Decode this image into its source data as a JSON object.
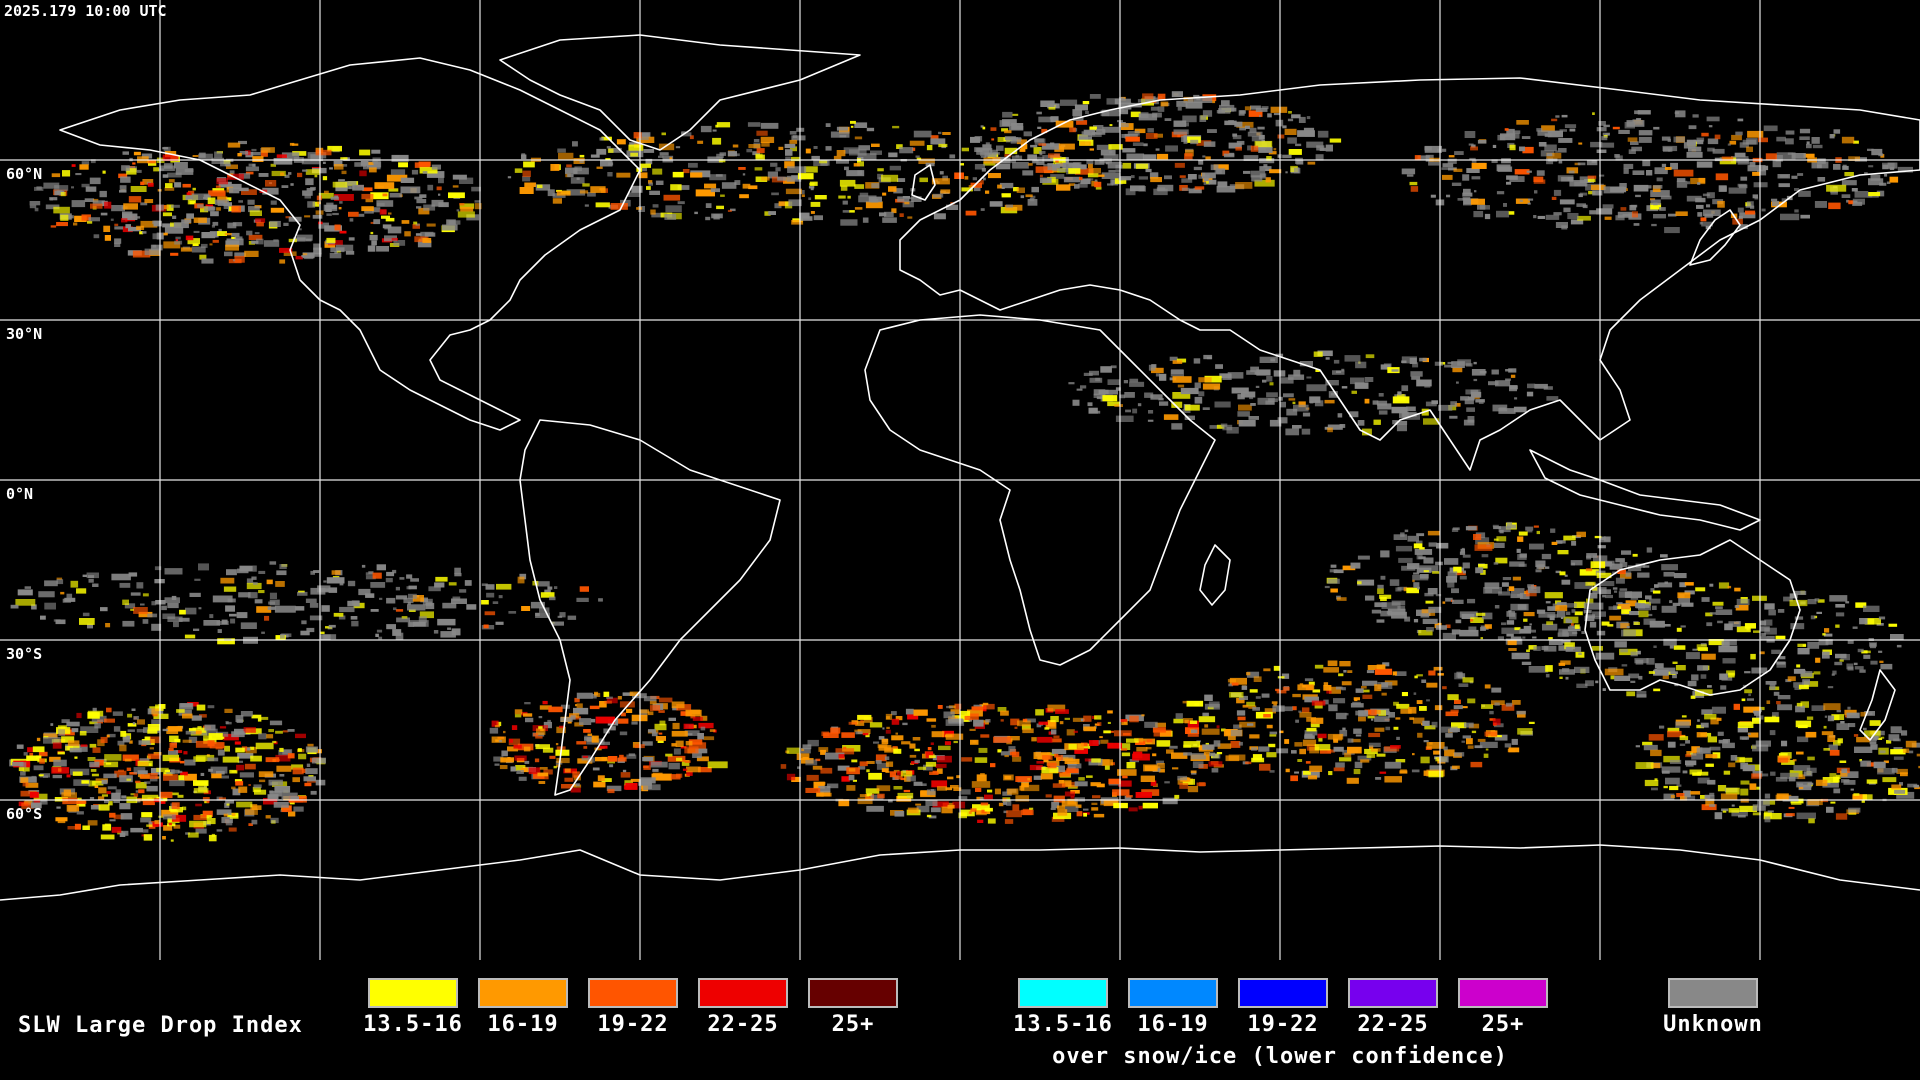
{
  "header": {
    "timestamp": "2025.179 10:00 UTC"
  },
  "map": {
    "projection": "equirectangular",
    "lat_labels": [
      "60°N",
      "30°N",
      "0°N",
      "30°S",
      "60°S"
    ],
    "gridline_color": "#ffffff",
    "coastline_color": "#ffffff",
    "background_color": "#000000"
  },
  "legend": {
    "title": "SLW Large Drop Index",
    "standard": [
      {
        "label": "13.5-16",
        "color": "#ffff00"
      },
      {
        "label": "16-19",
        "color": "#ff9900"
      },
      {
        "label": "19-22",
        "color": "#ff5500"
      },
      {
        "label": "22-25",
        "color": "#ee0000"
      },
      {
        "label": "25+",
        "color": "#660000"
      }
    ],
    "snow_ice": [
      {
        "label": "13.5-16",
        "color": "#00ffff"
      },
      {
        "label": "16-19",
        "color": "#0088ff"
      },
      {
        "label": "19-22",
        "color": "#0000ff"
      },
      {
        "label": "22-25",
        "color": "#7700ee"
      },
      {
        "label": "25+",
        "color": "#cc00cc"
      }
    ],
    "snow_ice_caption": "over snow/ice (lower confidence)",
    "unknown": {
      "label": "Unknown",
      "color": "#888888"
    }
  }
}
